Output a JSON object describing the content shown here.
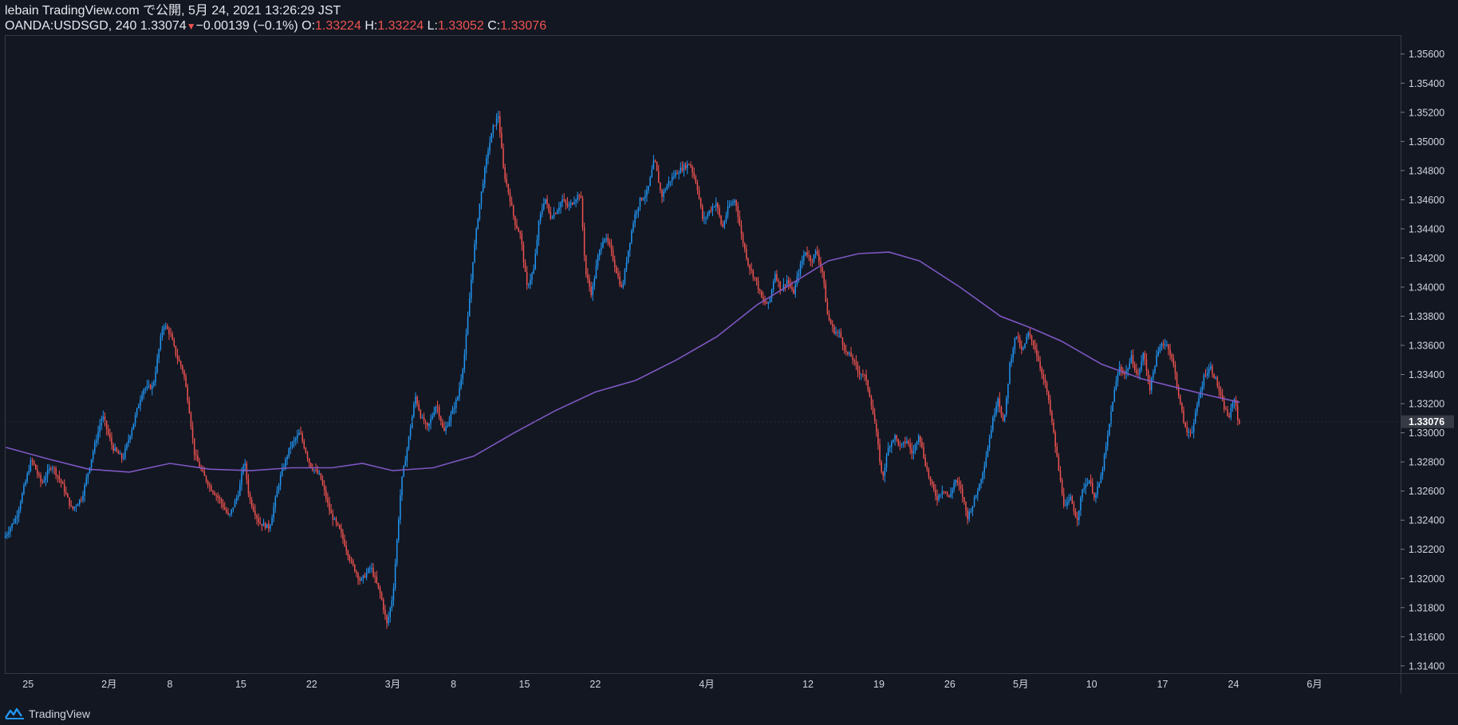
{
  "header": {
    "publisher": "lebain TradingView.com で公開, 5月 24, 2021 13:26:29 JST",
    "symbol": "OANDA:USDSGD, 240",
    "last": "1.33074",
    "arrow": "▼",
    "change": "−0.00139 (−0.1%)",
    "o_label": "O:",
    "o_value": "1.33224",
    "h_label": "H:",
    "h_value": "1.33224",
    "l_label": "L:",
    "l_value": "1.33052",
    "c_label": "C:",
    "c_value": "1.33076"
  },
  "footer": {
    "brand": "TradingView",
    "logo_icon": "tradingview-logo-icon"
  },
  "colors": {
    "background": "#131722",
    "up": "#2196f3",
    "down": "#ef5350",
    "ma": "#7e57c2",
    "axis_text": "#d1d4dc",
    "price_tag": "#363a45"
  },
  "chart_data": {
    "type": "candlestick",
    "ylim": [
      1.3135,
      1.3573
    ],
    "y_ticks": [
      "1.35600",
      "1.35400",
      "1.35200",
      "1.35000",
      "1.34800",
      "1.34600",
      "1.34400",
      "1.34200",
      "1.34000",
      "1.33800",
      "1.33600",
      "1.33400",
      "1.33200",
      "1.33000",
      "1.32800",
      "1.32600",
      "1.32400",
      "1.32200",
      "1.32000",
      "1.31800",
      "1.31600",
      "1.31400"
    ],
    "current_price": "1.33076",
    "x_labels": [
      "25",
      "2月",
      "8",
      "15",
      "22",
      "3月",
      "8",
      "15",
      "22",
      "4月",
      "12",
      "19",
      "26",
      "5月",
      "10",
      "17",
      "24",
      "6月"
    ],
    "x_label_days": [
      0,
      8,
      14,
      21,
      28,
      36,
      42,
      49,
      56,
      67,
      77,
      84,
      91,
      98,
      105,
      112,
      119,
      127
    ],
    "x_range_days": [
      -2.3,
      135.5
    ],
    "price_anchors": [
      [
        -2.2,
        1.3228
      ],
      [
        -1,
        1.3242
      ],
      [
        0.5,
        1.3282
      ],
      [
        1.5,
        1.3265
      ],
      [
        2.5,
        1.3278
      ],
      [
        3.5,
        1.3265
      ],
      [
        4.5,
        1.3247
      ],
      [
        5.5,
        1.3256
      ],
      [
        6.5,
        1.3285
      ],
      [
        7.5,
        1.3312
      ],
      [
        8.5,
        1.329
      ],
      [
        9.5,
        1.3282
      ],
      [
        10.5,
        1.3305
      ],
      [
        11.5,
        1.333
      ],
      [
        12.5,
        1.3332
      ],
      [
        13.5,
        1.3375
      ],
      [
        14.2,
        1.3368
      ],
      [
        14.8,
        1.3353
      ],
      [
        15.5,
        1.3342
      ],
      [
        16,
        1.332
      ],
      [
        16.6,
        1.3285
      ],
      [
        17.4,
        1.3272
      ],
      [
        18.2,
        1.3262
      ],
      [
        19,
        1.3255
      ],
      [
        20,
        1.3242
      ],
      [
        21,
        1.326
      ],
      [
        21.5,
        1.3282
      ],
      [
        22,
        1.3255
      ],
      [
        23,
        1.3238
      ],
      [
        24,
        1.3235
      ],
      [
        25,
        1.3268
      ],
      [
        26,
        1.329
      ],
      [
        27,
        1.33
      ],
      [
        28,
        1.3278
      ],
      [
        29,
        1.327
      ],
      [
        30,
        1.3245
      ],
      [
        31,
        1.3232
      ],
      [
        32,
        1.3212
      ],
      [
        33,
        1.3198
      ],
      [
        34,
        1.3208
      ],
      [
        34.5,
        1.3198
      ],
      [
        35,
        1.3188
      ],
      [
        35.6,
        1.3168
      ],
      [
        36.2,
        1.319
      ],
      [
        37,
        1.3265
      ],
      [
        37.6,
        1.329
      ],
      [
        38.4,
        1.3325
      ],
      [
        39,
        1.331
      ],
      [
        39.6,
        1.3303
      ],
      [
        40.5,
        1.332
      ],
      [
        41.2,
        1.33
      ],
      [
        41.8,
        1.331
      ],
      [
        42.6,
        1.3325
      ],
      [
        43.2,
        1.335
      ],
      [
        43.6,
        1.338
      ],
      [
        44.1,
        1.342
      ],
      [
        44.7,
        1.3455
      ],
      [
        45.2,
        1.3478
      ],
      [
        45.6,
        1.3495
      ],
      [
        46.1,
        1.351
      ],
      [
        46.6,
        1.3518
      ],
      [
        47.1,
        1.348
      ],
      [
        47.7,
        1.3462
      ],
      [
        48.2,
        1.3445
      ],
      [
        48.8,
        1.3435
      ],
      [
        49.4,
        1.34
      ],
      [
        50.1,
        1.3412
      ],
      [
        50.6,
        1.3445
      ],
      [
        51.2,
        1.3462
      ],
      [
        51.7,
        1.3448
      ],
      [
        52.3,
        1.3452
      ],
      [
        52.9,
        1.346
      ],
      [
        53.5,
        1.3455
      ],
      [
        54.1,
        1.346
      ],
      [
        54.7,
        1.3465
      ],
      [
        55.2,
        1.341
      ],
      [
        55.8,
        1.3395
      ],
      [
        56.4,
        1.342
      ],
      [
        57,
        1.3435
      ],
      [
        57.6,
        1.3428
      ],
      [
        58.2,
        1.3412
      ],
      [
        58.8,
        1.3398
      ],
      [
        59.4,
        1.3425
      ],
      [
        60,
        1.3448
      ],
      [
        60.6,
        1.346
      ],
      [
        61.3,
        1.3465
      ],
      [
        62,
        1.3488
      ],
      [
        62.7,
        1.3462
      ],
      [
        63.4,
        1.3472
      ],
      [
        64.1,
        1.3478
      ],
      [
        64.8,
        1.3482
      ],
      [
        65.5,
        1.3485
      ],
      [
        66.2,
        1.347
      ],
      [
        66.8,
        1.3445
      ],
      [
        67.4,
        1.3452
      ],
      [
        68.1,
        1.3458
      ],
      [
        68.7,
        1.344
      ],
      [
        69.3,
        1.3455
      ],
      [
        70,
        1.346
      ],
      [
        70.6,
        1.3435
      ],
      [
        71.3,
        1.3415
      ],
      [
        72,
        1.3405
      ],
      [
        72.7,
        1.339
      ],
      [
        73.3,
        1.3388
      ],
      [
        73.9,
        1.341
      ],
      [
        74.5,
        1.3398
      ],
      [
        75.1,
        1.3405
      ],
      [
        75.7,
        1.3395
      ],
      [
        76.3,
        1.3412
      ],
      [
        76.9,
        1.3425
      ],
      [
        77.5,
        1.3418
      ],
      [
        78,
        1.3425
      ],
      [
        78.6,
        1.341
      ],
      [
        79.1,
        1.338
      ],
      [
        79.7,
        1.337
      ],
      [
        80.3,
        1.3368
      ],
      [
        80.9,
        1.3355
      ],
      [
        81.5,
        1.3352
      ],
      [
        82.1,
        1.3342
      ],
      [
        82.7,
        1.334
      ],
      [
        83.3,
        1.3325
      ],
      [
        83.9,
        1.33
      ],
      [
        84.5,
        1.3268
      ],
      [
        85.1,
        1.329
      ],
      [
        85.7,
        1.3298
      ],
      [
        86.3,
        1.329
      ],
      [
        86.9,
        1.3295
      ],
      [
        87.5,
        1.3285
      ],
      [
        88.1,
        1.33
      ],
      [
        88.7,
        1.328
      ],
      [
        89.3,
        1.3265
      ],
      [
        89.9,
        1.3255
      ],
      [
        90.5,
        1.3262
      ],
      [
        91.1,
        1.3255
      ],
      [
        91.7,
        1.3268
      ],
      [
        92.3,
        1.326
      ],
      [
        92.9,
        1.3242
      ],
      [
        93.5,
        1.3252
      ],
      [
        94.1,
        1.3265
      ],
      [
        94.7,
        1.3282
      ],
      [
        95.3,
        1.3305
      ],
      [
        95.9,
        1.3325
      ],
      [
        96.5,
        1.3305
      ],
      [
        97.1,
        1.3348
      ],
      [
        97.7,
        1.3368
      ],
      [
        98.3,
        1.3355
      ],
      [
        98.9,
        1.3368
      ],
      [
        99.5,
        1.336
      ],
      [
        100.1,
        1.3345
      ],
      [
        100.7,
        1.333
      ],
      [
        101.3,
        1.3305
      ],
      [
        101.9,
        1.3275
      ],
      [
        102.5,
        1.3248
      ],
      [
        103.1,
        1.3255
      ],
      [
        103.7,
        1.324
      ],
      [
        104.3,
        1.3262
      ],
      [
        104.9,
        1.3268
      ],
      [
        105.5,
        1.3255
      ],
      [
        106.1,
        1.327
      ],
      [
        106.7,
        1.3295
      ],
      [
        107.3,
        1.3325
      ],
      [
        107.9,
        1.3345
      ],
      [
        108.5,
        1.334
      ],
      [
        109.1,
        1.3352
      ],
      [
        109.7,
        1.3338
      ],
      [
        110.3,
        1.3355
      ],
      [
        110.9,
        1.333
      ],
      [
        111.5,
        1.335
      ],
      [
        112.1,
        1.3362
      ],
      [
        112.7,
        1.336
      ],
      [
        113.3,
        1.3345
      ],
      [
        113.9,
        1.332
      ],
      [
        114.5,
        1.33
      ],
      [
        115.1,
        1.3302
      ],
      [
        115.7,
        1.3322
      ],
      [
        116.3,
        1.334
      ],
      [
        116.9,
        1.3345
      ],
      [
        117.5,
        1.3335
      ],
      [
        118.1,
        1.332
      ],
      [
        118.7,
        1.331
      ],
      [
        119.3,
        1.3325
      ],
      [
        119.6,
        1.3308
      ]
    ],
    "moving_average": [
      [
        -2.2,
        1.329
      ],
      [
        2,
        1.3282
      ],
      [
        6,
        1.3275
      ],
      [
        10,
        1.3273
      ],
      [
        14,
        1.3279
      ],
      [
        18,
        1.3275
      ],
      [
        22,
        1.3274
      ],
      [
        26,
        1.3276
      ],
      [
        30,
        1.3276
      ],
      [
        33,
        1.3279
      ],
      [
        36,
        1.3274
      ],
      [
        40,
        1.3276
      ],
      [
        44,
        1.3284
      ],
      [
        48,
        1.33
      ],
      [
        52,
        1.3315
      ],
      [
        56,
        1.3328
      ],
      [
        60,
        1.3336
      ],
      [
        64,
        1.335
      ],
      [
        68,
        1.3366
      ],
      [
        72,
        1.3388
      ],
      [
        76,
        1.3405
      ],
      [
        79,
        1.3418
      ],
      [
        82,
        1.3423
      ],
      [
        85,
        1.3424
      ],
      [
        88,
        1.3418
      ],
      [
        92,
        1.34
      ],
      [
        96,
        1.338
      ],
      [
        99,
        1.3372
      ],
      [
        102,
        1.3363
      ],
      [
        106,
        1.3347
      ],
      [
        110,
        1.3337
      ],
      [
        114,
        1.333
      ],
      [
        117,
        1.3325
      ],
      [
        119.6,
        1.3321
      ]
    ]
  }
}
